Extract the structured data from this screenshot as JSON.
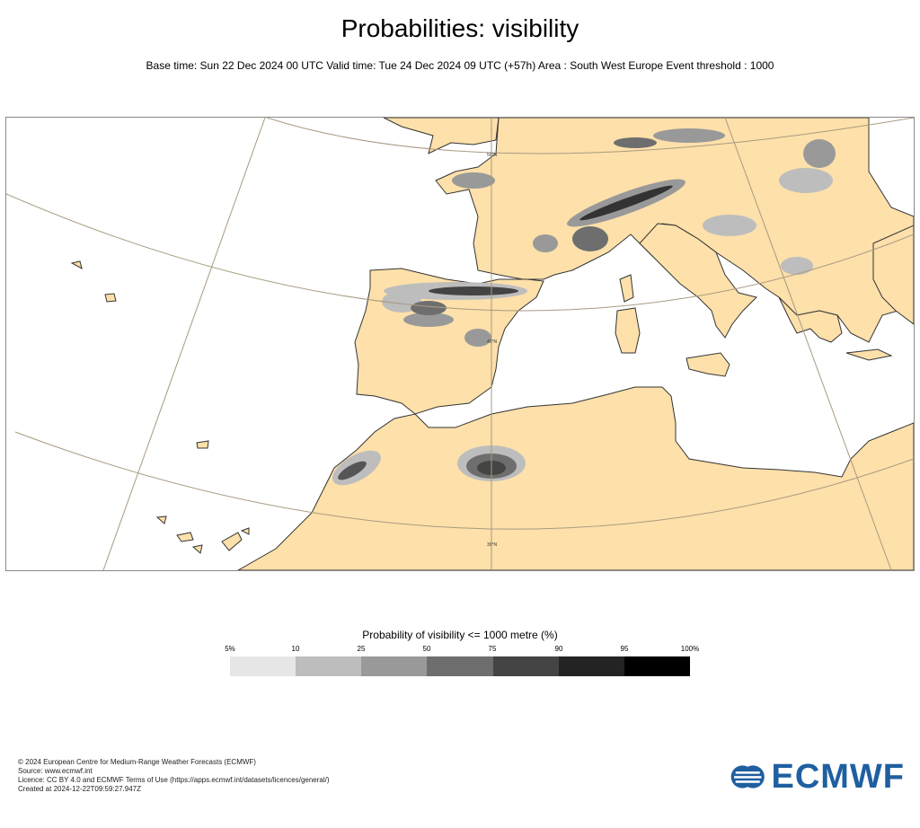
{
  "header": {
    "title": "Probabilities: visibility",
    "subtitle": "Base time: Sun 22 Dec 2024 00 UTC Valid time: Tue 24 Dec 2024 09 UTC (+57h) Area : South West Europe Event threshold : 1000"
  },
  "map": {
    "latitude_labels": [
      "50°N",
      "40°N",
      "30°N"
    ],
    "land_color": "#fde0aa",
    "sea_color": "#ffffff",
    "graticule_color": "#a89a80",
    "coast_color": "#333333"
  },
  "legend": {
    "title": "Probability of visibility <= 1000 metre (%)",
    "ticks": [
      "5%",
      "10",
      "25",
      "50",
      "75",
      "90",
      "95",
      "100%"
    ],
    "colors": [
      "#e6e6e6",
      "#bdbdbd",
      "#999999",
      "#6e6e6e",
      "#444444",
      "#232323",
      "#000000"
    ]
  },
  "footer": {
    "line1": "© 2024 European Centre for Medium-Range Weather Forecasts (ECMWF)",
    "line2": "Source: www.ecmwf.int",
    "line3": "Licence: CC BY 4.0 and ECMWF Terms of Use (https://apps.ecmwf.int/datasets/licences/general/)",
    "line4": "Created at 2024-12-22T09:59:27.947Z"
  },
  "logo": {
    "text": "ECMWF",
    "color": "#1f5fa0"
  }
}
